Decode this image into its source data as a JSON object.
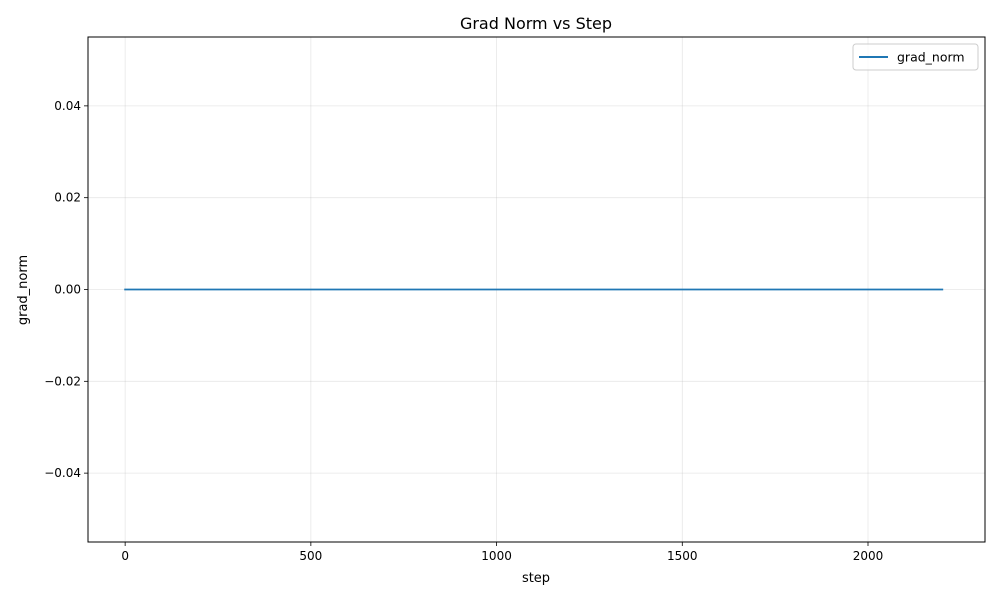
{
  "chart_data": {
    "type": "line",
    "title": "Grad Norm vs Step",
    "xlabel": "step",
    "ylabel": "grad_norm",
    "xlim": [
      -100,
      2315
    ],
    "ylim": [
      -0.055,
      0.055
    ],
    "xticks": [
      0,
      500,
      1000,
      1500,
      2000
    ],
    "xtick_labels": [
      "0",
      "500",
      "1000",
      "1500",
      "2000"
    ],
    "yticks": [
      -0.04,
      -0.02,
      0.0,
      0.02,
      0.04
    ],
    "ytick_labels": [
      "−0.04",
      "−0.02",
      "0.00",
      "0.02",
      "0.04"
    ],
    "grid": true,
    "legend_position": "top-right",
    "series": [
      {
        "name": "grad_norm",
        "color": "#1f77b4",
        "x": [
          0,
          2200
        ],
        "y": [
          0.0,
          0.0
        ]
      }
    ]
  }
}
